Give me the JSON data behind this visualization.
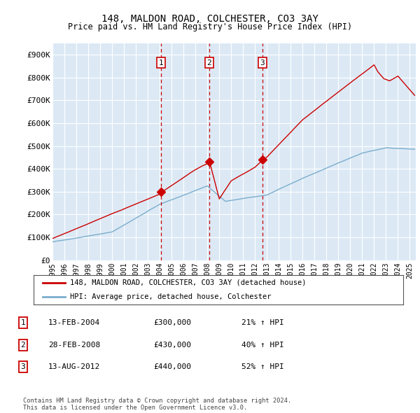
{
  "title": "148, MALDON ROAD, COLCHESTER, CO3 3AY",
  "subtitle": "Price paid vs. HM Land Registry's House Price Index (HPI)",
  "ylabel_ticks": [
    "£0",
    "£100K",
    "£200K",
    "£300K",
    "£400K",
    "£500K",
    "£600K",
    "£700K",
    "£800K",
    "£900K"
  ],
  "ytick_values": [
    0,
    100000,
    200000,
    300000,
    400000,
    500000,
    600000,
    700000,
    800000,
    900000
  ],
  "ylim": [
    0,
    950000
  ],
  "xlim_start": 1995.0,
  "xlim_end": 2025.5,
  "bg_color": "#dce9f5",
  "grid_color": "#ffffff",
  "red_color": "#cc0000",
  "blue_color": "#7aadcc",
  "transactions": [
    {
      "year": 2004.12,
      "price": 300000,
      "label": "1"
    },
    {
      "year": 2008.16,
      "price": 430000,
      "label": "2"
    },
    {
      "year": 2012.62,
      "price": 440000,
      "label": "3"
    }
  ],
  "legend_entries": [
    "148, MALDON ROAD, COLCHESTER, CO3 3AY (detached house)",
    "HPI: Average price, detached house, Colchester"
  ],
  "table_rows": [
    {
      "num": "1",
      "date": "13-FEB-2004",
      "price": "£300,000",
      "change": "21% ↑ HPI"
    },
    {
      "num": "2",
      "date": "28-FEB-2008",
      "price": "£430,000",
      "change": "40% ↑ HPI"
    },
    {
      "num": "3",
      "date": "13-AUG-2012",
      "price": "£440,000",
      "change": "52% ↑ HPI"
    }
  ],
  "footer": "Contains HM Land Registry data © Crown copyright and database right 2024.\nThis data is licensed under the Open Government Licence v3.0.",
  "xtick_years": [
    1995,
    1996,
    1997,
    1998,
    1999,
    2000,
    2001,
    2002,
    2003,
    2004,
    2005,
    2006,
    2007,
    2008,
    2009,
    2010,
    2011,
    2012,
    2013,
    2014,
    2015,
    2016,
    2017,
    2018,
    2019,
    2020,
    2021,
    2022,
    2023,
    2024,
    2025
  ]
}
